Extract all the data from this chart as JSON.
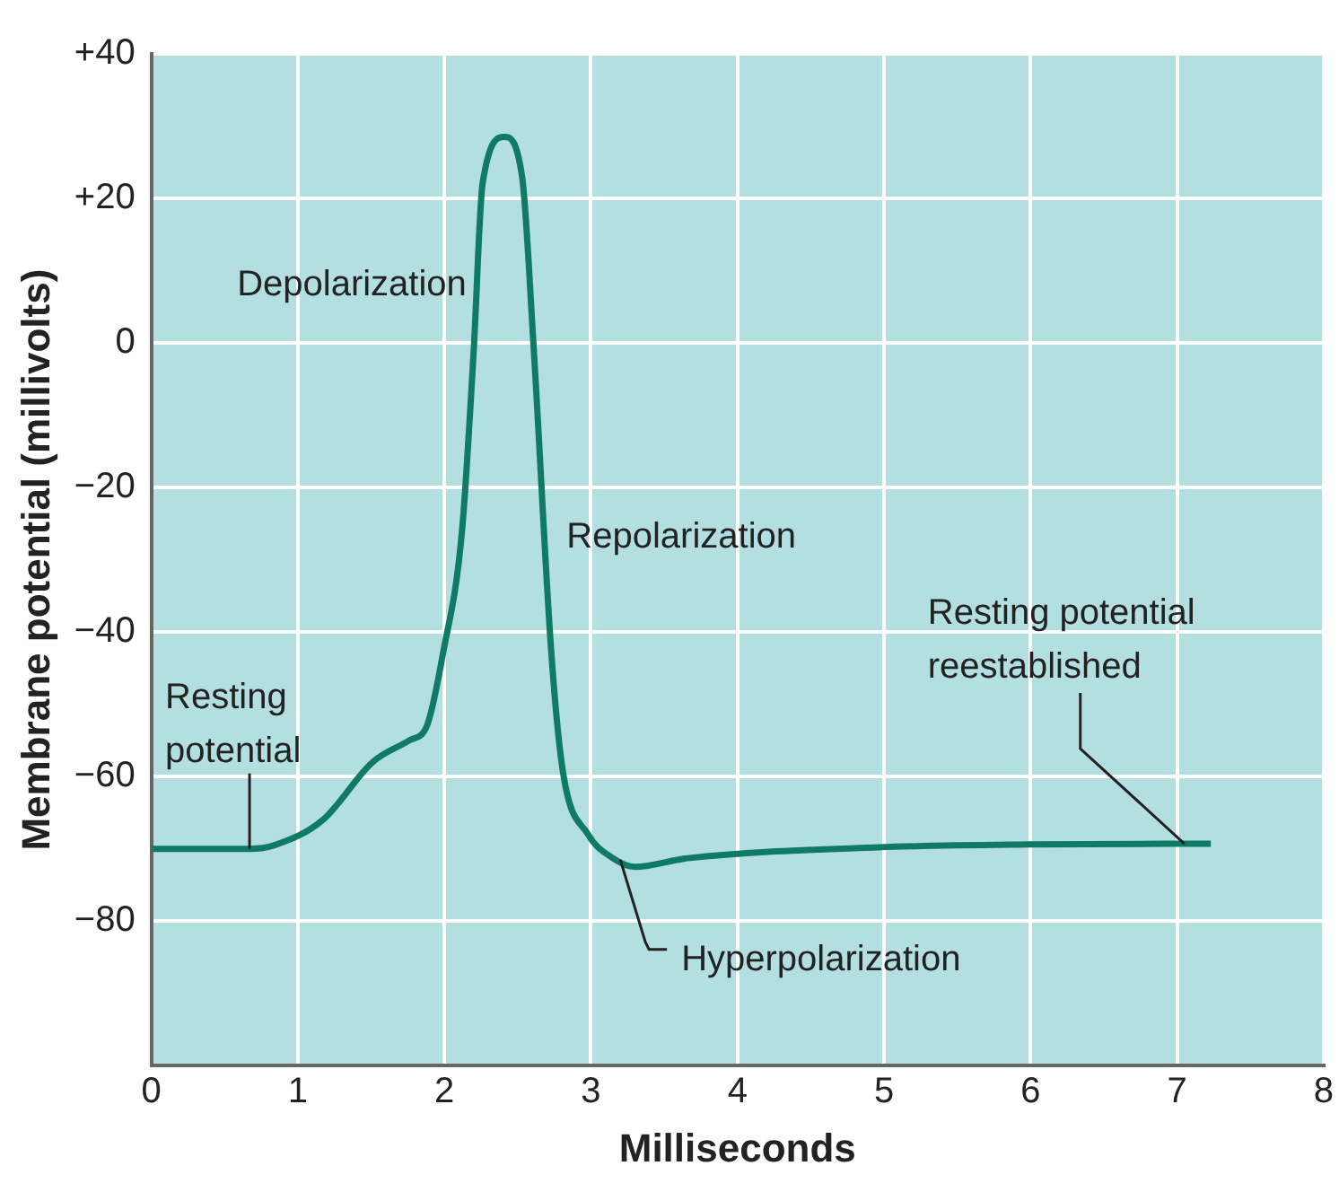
{
  "chart_data": {
    "type": "line",
    "xlabel": "Milliseconds",
    "ylabel": "Membrane potential (millivolts)",
    "x": [
      0,
      0.67,
      0.84,
      1.17,
      1.51,
      1.76,
      1.88,
      1.99,
      2.12,
      2.2,
      2.26,
      2.41,
      2.53,
      2.61,
      2.73,
      2.81,
      2.98,
      3.15,
      3.3,
      3.66,
      4.96,
      6,
      7.07,
      7.23
    ],
    "series": [
      {
        "color": "#0f7a66",
        "values": [
          -70,
          -70,
          -69.5,
          -66,
          -58,
          -55,
          -53,
          -43,
          -26,
          -1,
          22,
          28.5,
          23,
          -1,
          -43,
          -59.5,
          -68,
          -71.3,
          -72.5,
          -71.3,
          -69.8,
          -69.4,
          -69.3,
          -69.3
        ]
      }
    ],
    "xlim": [
      0,
      8
    ],
    "xticks": [
      0,
      1,
      2,
      3,
      4,
      5,
      6,
      7,
      8
    ],
    "ylim": [
      -100,
      40
    ],
    "yticks": [
      {
        "value": 40,
        "label": "+40"
      },
      {
        "value": 20,
        "label": "+20"
      },
      0,
      {
        "value": -20,
        "label": "−20"
      },
      {
        "value": -40,
        "label": "−40"
      },
      {
        "value": -60,
        "label": "−60"
      },
      {
        "value": -80,
        "label": "−80"
      },
      {
        "value": -100,
        "label": null
      }
    ],
    "grid": true,
    "legend": false,
    "marker": "none",
    "line_style": "solid",
    "annotations": [
      {
        "text": "Depolarization",
        "x": 2.2,
        "y": -1
      },
      {
        "text": "Repolarization",
        "x": 2.65,
        "y": -20
      },
      {
        "text": "Resting potential",
        "x": 0.67,
        "y": -70
      },
      {
        "text": "Hyperpolarization",
        "x": 3.2,
        "y": -71.5
      },
      {
        "text": "Resting potential reestablished",
        "x": 7.05,
        "y": -69.3
      }
    ]
  }
}
